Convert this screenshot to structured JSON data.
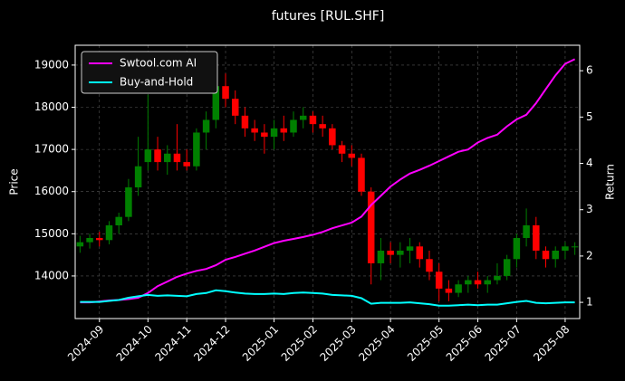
{
  "chart_data": {
    "type": "candlestick",
    "title": "futures [RUL.SHF]",
    "ylabel": "Price",
    "y2label": "Return",
    "categories": [
      null,
      null,
      "2024-09",
      null,
      null,
      null,
      null,
      "2024-10",
      null,
      null,
      null,
      "2024-11",
      null,
      null,
      null,
      "2024-12",
      null,
      null,
      null,
      null,
      "2025-01",
      null,
      null,
      null,
      "2025-02",
      null,
      null,
      null,
      "2025-03",
      null,
      null,
      null,
      "2025-04",
      null,
      null,
      null,
      null,
      "2025-05",
      null,
      null,
      null,
      "2025-06",
      null,
      null,
      null,
      "2025-07",
      null,
      null,
      null,
      null,
      "2025-08",
      null
    ],
    "open": [
      14700,
      14800,
      14900,
      14850,
      15200,
      15400,
      16100,
      16700,
      17000,
      16700,
      16900,
      16700,
      16600,
      17400,
      17700,
      18500,
      18200,
      17800,
      17500,
      17400,
      17300,
      17500,
      17400,
      17700,
      17800,
      17600,
      17500,
      17100,
      16900,
      16800,
      16000,
      14300,
      14600,
      14500,
      14600,
      14700,
      14400,
      14100,
      13700,
      13600,
      13800,
      13900,
      13800,
      13900,
      14000,
      14400,
      14900,
      15200,
      14600,
      14400,
      14600,
      14700
    ],
    "high": [
      14950,
      15000,
      15050,
      15300,
      15500,
      16300,
      17300,
      18300,
      17300,
      17100,
      17600,
      17000,
      17500,
      17900,
      18800,
      18800,
      18400,
      18000,
      17700,
      17600,
      17700,
      17800,
      17900,
      18000,
      17900,
      17800,
      17600,
      17200,
      17100,
      16900,
      16100,
      14900,
      14800,
      14800,
      14900,
      14800,
      14600,
      14300,
      13900,
      13900,
      14000,
      14100,
      14000,
      14300,
      14500,
      15000,
      15600,
      15400,
      14700,
      14700,
      14800,
      14800
    ],
    "low": [
      14550,
      14650,
      14700,
      14750,
      15000,
      15300,
      15900,
      16500,
      16500,
      16400,
      16500,
      16500,
      16500,
      17000,
      17500,
      18000,
      17600,
      17300,
      17200,
      16900,
      17000,
      17200,
      17300,
      17500,
      17400,
      17300,
      17000,
      16700,
      16600,
      15900,
      13800,
      13900,
      14300,
      14200,
      14300,
      14200,
      13900,
      13400,
      13400,
      13500,
      13600,
      13700,
      13600,
      13800,
      13900,
      14200,
      14700,
      14400,
      14200,
      14200,
      14400,
      14500
    ],
    "close": [
      14800,
      14900,
      14850,
      15200,
      15400,
      16100,
      16600,
      17000,
      16700,
      16900,
      16700,
      16600,
      17400,
      17700,
      18500,
      18200,
      17800,
      17500,
      17400,
      17300,
      17500,
      17400,
      17700,
      17800,
      17600,
      17500,
      17100,
      16900,
      16800,
      16000,
      14300,
      14600,
      14500,
      14600,
      14700,
      14400,
      14100,
      13700,
      13600,
      13800,
      13900,
      13800,
      13900,
      14000,
      14400,
      14900,
      15200,
      14600,
      14400,
      14600,
      14700,
      14700
    ],
    "up_color": "#008000",
    "down_color": "#ff0000",
    "ylim": [
      12990,
      19470
    ],
    "yticks": [
      14000,
      15000,
      16000,
      17000,
      18000,
      19000
    ],
    "y2lim": [
      0.65,
      6.55
    ],
    "y2ticks": [
      1,
      2,
      3,
      4,
      5,
      6
    ],
    "grid": true,
    "legend": "upper left",
    "series": [
      {
        "name": "Swtool.com AI",
        "color": "#ff00ff",
        "axis": "y2",
        "type": "line",
        "values": [
          1.0,
          1.0,
          1.02,
          1.04,
          1.05,
          1.07,
          1.1,
          1.2,
          1.35,
          1.45,
          1.55,
          1.62,
          1.68,
          1.72,
          1.8,
          1.92,
          1.98,
          2.05,
          2.12,
          2.2,
          2.28,
          2.33,
          2.37,
          2.41,
          2.46,
          2.52,
          2.6,
          2.66,
          2.72,
          2.85,
          3.1,
          3.3,
          3.5,
          3.65,
          3.78,
          3.86,
          3.95,
          4.05,
          4.15,
          4.25,
          4.3,
          4.45,
          4.55,
          4.62,
          4.8,
          4.95,
          5.05,
          5.3,
          5.6,
          5.9,
          6.15,
          6.25
        ]
      },
      {
        "name": "Buy-and-Hold",
        "color": "#00ffff",
        "axis": "y2",
        "type": "line",
        "values": [
          1.01,
          1.01,
          1.01,
          1.03,
          1.05,
          1.1,
          1.13,
          1.16,
          1.14,
          1.15,
          1.14,
          1.13,
          1.18,
          1.2,
          1.26,
          1.24,
          1.21,
          1.19,
          1.18,
          1.18,
          1.19,
          1.18,
          1.2,
          1.21,
          1.2,
          1.19,
          1.16,
          1.15,
          1.14,
          1.09,
          0.97,
          0.99,
          0.99,
          0.99,
          1.0,
          0.98,
          0.96,
          0.93,
          0.93,
          0.94,
          0.95,
          0.94,
          0.95,
          0.95,
          0.98,
          1.01,
          1.03,
          0.99,
          0.98,
          0.99,
          1.0,
          1.0
        ]
      }
    ]
  }
}
